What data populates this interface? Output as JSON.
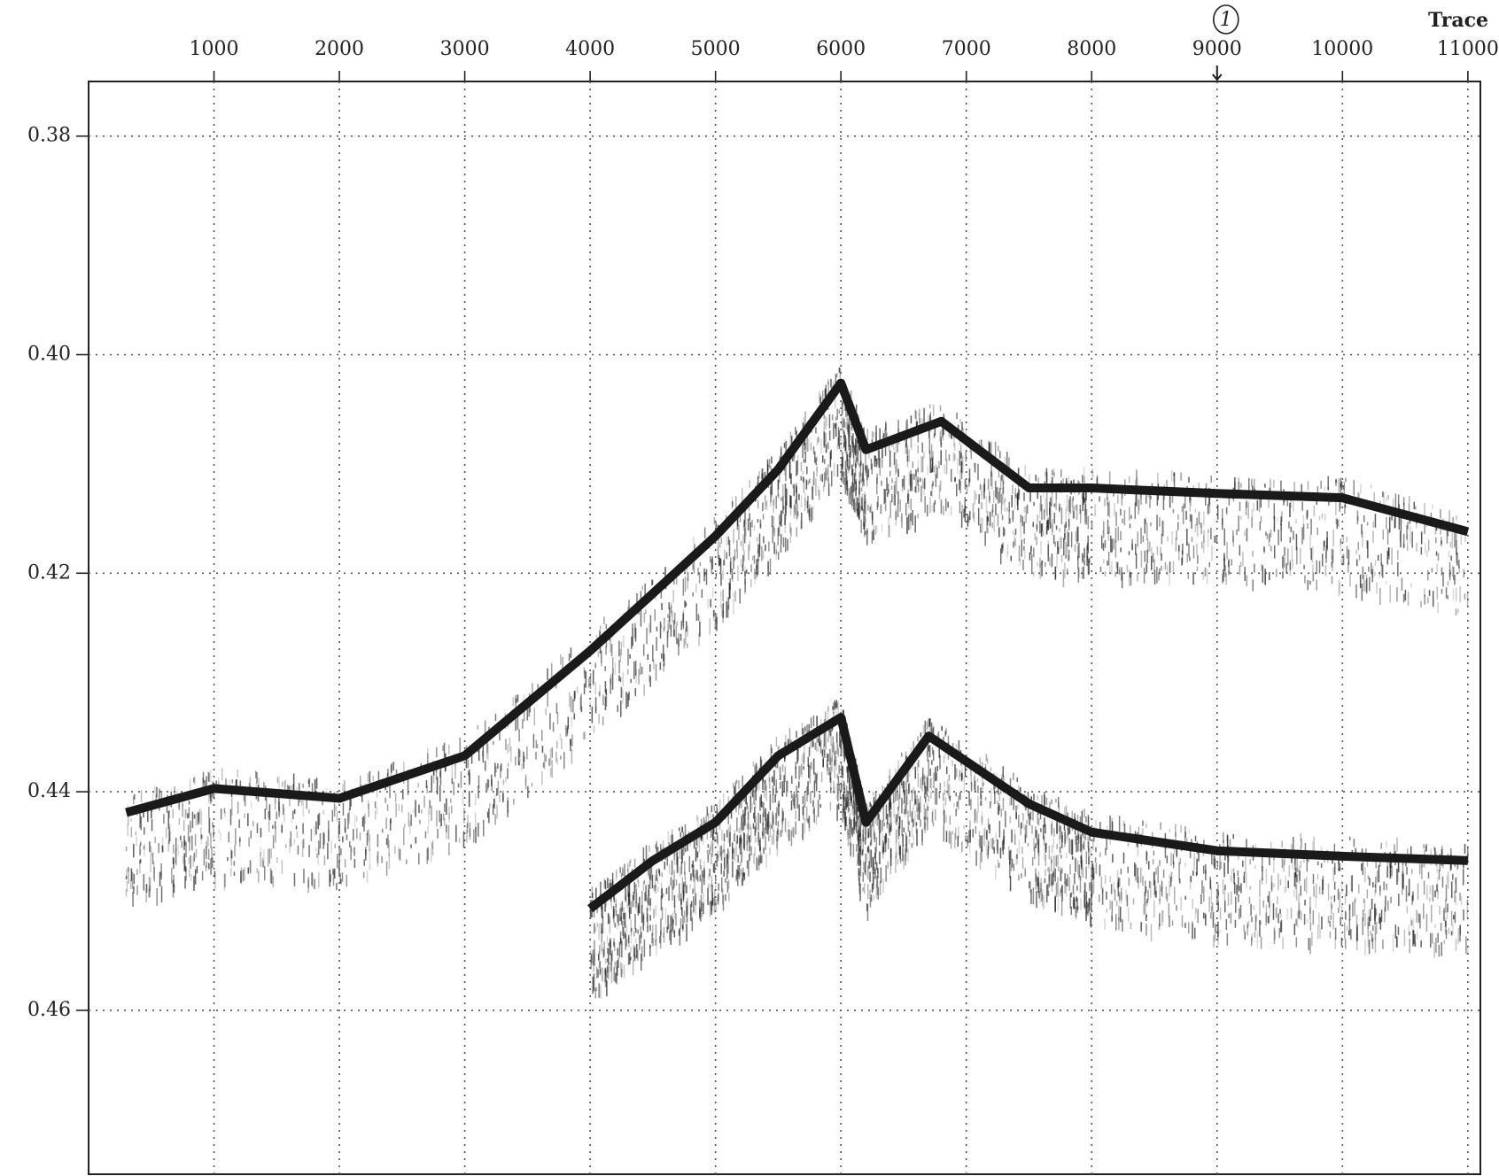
{
  "chart_data": {
    "type": "seismic-section",
    "x_label": "Trace",
    "annotation": {
      "text": "1",
      "x": 9000
    },
    "xlim": [
      0,
      11100
    ],
    "xticks": [
      1000,
      2000,
      3000,
      4000,
      5000,
      6000,
      7000,
      8000,
      9000,
      10000,
      11000
    ],
    "ylim": [
      0.375,
      0.475
    ],
    "yticks": [
      0.38,
      {
        "value": 0.4,
        "label": "0.40"
      },
      0.42,
      0.44,
      0.46
    ],
    "y_inverted": true,
    "grid": true,
    "series": [
      {
        "color": "#1a1a1a",
        "x": [
          300,
          1000,
          2000,
          3000,
          4000,
          5000,
          5500,
          6000,
          6200,
          6800,
          7500,
          8000,
          9000,
          10000,
          11000
        ],
        "values": [
          0.4419,
          0.4397,
          0.4406,
          0.4367,
          0.4271,
          0.4166,
          0.4105,
          0.4026,
          0.4087,
          0.4061,
          0.4122,
          0.4122,
          0.4127,
          0.4131,
          0.4162
        ]
      },
      {
        "color": "#1a1a1a",
        "x": [
          4000,
          4500,
          5000,
          5500,
          6000,
          6200,
          6700,
          7500,
          8000,
          9000,
          10000,
          11000
        ],
        "values": [
          0.4507,
          0.4463,
          0.4428,
          0.4367,
          0.4332,
          0.4428,
          0.4349,
          0.4411,
          0.4437,
          0.4454,
          0.4459,
          0.4463
        ]
      }
    ]
  }
}
